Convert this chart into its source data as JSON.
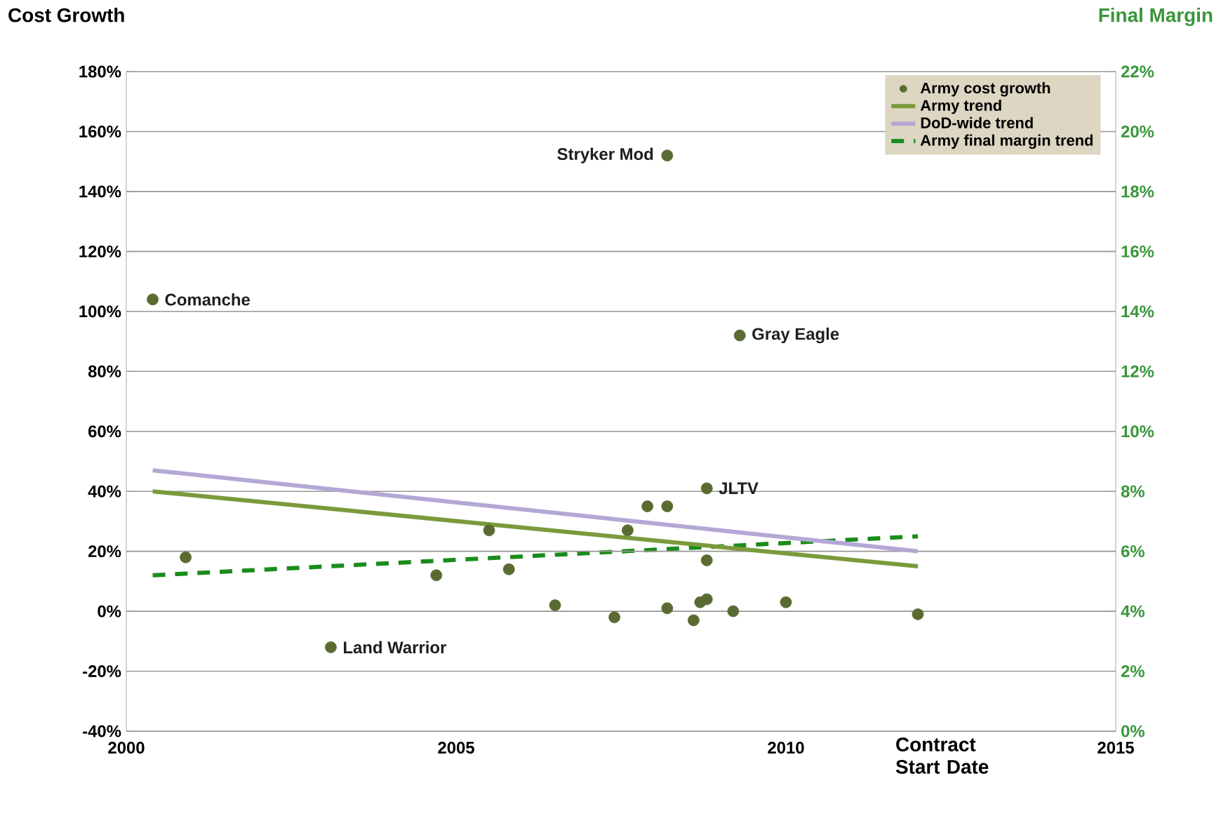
{
  "chart_data": {
    "type": "scatter",
    "ylabel": "Cost Growth",
    "y2label": "Final Margin",
    "xlabel": "Contract Start Date",
    "xlim": [
      2000,
      2015
    ],
    "xticks": [
      2000,
      2005,
      2010,
      2015
    ],
    "ylim": [
      -40,
      180
    ],
    "yticks": [
      {
        "value": -40,
        "label": "-40%"
      },
      {
        "value": -20,
        "label": "-20%"
      },
      {
        "value": 0,
        "label": "0%"
      },
      {
        "value": 20,
        "label": "20%"
      },
      {
        "value": 40,
        "label": "40%"
      },
      {
        "value": 60,
        "label": "60%"
      },
      {
        "value": 80,
        "label": "80%"
      },
      {
        "value": 100,
        "label": "100%"
      },
      {
        "value": 120,
        "label": "120%"
      },
      {
        "value": 140,
        "label": "140%"
      },
      {
        "value": 160,
        "label": "160%"
      },
      {
        "value": 180,
        "label": "180%"
      }
    ],
    "y2lim": [
      0,
      22
    ],
    "y2ticks": [
      {
        "value": 0,
        "label": "0%"
      },
      {
        "value": 2,
        "label": "2%"
      },
      {
        "value": 4,
        "label": "4%"
      },
      {
        "value": 6,
        "label": "6%"
      },
      {
        "value": 8,
        "label": "8%"
      },
      {
        "value": 10,
        "label": "10%"
      },
      {
        "value": 12,
        "label": "12%"
      },
      {
        "value": 14,
        "label": "14%"
      },
      {
        "value": 16,
        "label": "16%"
      },
      {
        "value": 18,
        "label": "18%"
      },
      {
        "value": 20,
        "label": "20%"
      },
      {
        "value": 22,
        "label": "22%"
      }
    ],
    "grid": "y",
    "legend": "top right",
    "series": [
      {
        "name": "Army cost growth",
        "marker": "circle",
        "color": "#5a6b32",
        "x": [
          2000.4,
          2000.9,
          2003.1,
          2004.7,
          2005.5,
          2005.8,
          2006.5,
          2007.4,
          2007.6,
          2007.9,
          2008.2,
          2008.2,
          2008.2,
          2008.6,
          2008.7,
          2008.8,
          2008.8,
          2008.8,
          2009.2,
          2009.3,
          2010.0,
          2012.0
        ],
        "values": [
          104,
          18,
          -12,
          12,
          27,
          14,
          2,
          -2,
          27,
          35,
          35,
          152,
          1,
          -3,
          3,
          4,
          17,
          41,
          0,
          92,
          3,
          -1
        ]
      },
      {
        "name": "Army trend",
        "type": "line",
        "marker": "none",
        "color": "#7a9a3c",
        "x": [
          2000.4,
          2012.0
        ],
        "values": [
          40,
          15
        ]
      },
      {
        "name": "DoD-wide trend",
        "type": "line",
        "marker": "none",
        "color": "#b4a7d6",
        "x": [
          2000.4,
          2012.0
        ],
        "values": [
          47,
          20
        ]
      },
      {
        "name": "Army final margin trend",
        "type": "line",
        "marker": "none",
        "line_style": "dashed",
        "axis": "y2",
        "color": "#1a8c1a",
        "x": [
          2000.4,
          2012.0
        ],
        "values": [
          5.2,
          6.5
        ]
      }
    ],
    "annotations": [
      {
        "text": "Comanche",
        "x": 2000.4,
        "y": 104
      },
      {
        "text": "Stryker Mod",
        "x": 2008.2,
        "y": 152
      },
      {
        "text": "Gray Eagle",
        "x": 2009.3,
        "y": 92
      },
      {
        "text": "JLTV",
        "x": 2008.8,
        "y": 41
      },
      {
        "text": "Land Warrior",
        "x": 2003.1,
        "y": -12
      }
    ]
  }
}
